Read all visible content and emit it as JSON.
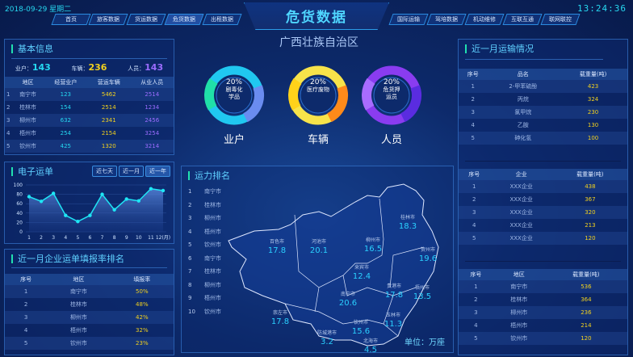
{
  "header": {
    "date": "2018-09-29  星期二",
    "time": "13:24:36",
    "title": "危货数据",
    "subtitle": "广西壮族自治区",
    "nav_left": [
      "首页",
      "旅客数据",
      "货运数据",
      "危货数据",
      "出租数据"
    ],
    "nav_right": [
      "国际运输",
      "驾培数据",
      "机动维修",
      "互联互通",
      "联网联控"
    ],
    "active": "危货数据"
  },
  "basic": {
    "title": "基本信息",
    "stats": [
      {
        "label": "业户：",
        "value": "143"
      },
      {
        "label": "车辆：",
        "value": "236"
      },
      {
        "label": "人员：",
        "value": "143"
      }
    ],
    "columns": [
      "",
      "地区",
      "经营业户",
      "营运车辆",
      "从业人员"
    ],
    "rows": [
      [
        "1",
        "南宁市",
        "123",
        "5462",
        "2514"
      ],
      [
        "2",
        "桂林市",
        "154",
        "2514",
        "1234"
      ],
      [
        "3",
        "柳州市",
        "632",
        "2341",
        "2456"
      ],
      [
        "4",
        "梧州市",
        "254",
        "2154",
        "3254"
      ],
      [
        "5",
        "钦州市",
        "425",
        "1320",
        "3214"
      ]
    ]
  },
  "donuts": [
    {
      "pct": "20%",
      "desc1": "剧毒化",
      "desc2": "学品",
      "label": "业户",
      "colors": [
        "#20c8f0",
        "#6a8cf0",
        "#20e0a8"
      ]
    },
    {
      "pct": "20%",
      "desc1": "医疗废物",
      "desc2": "",
      "label": "车辆",
      "colors": [
        "#f7e34a",
        "#ff8a1a",
        "#ffd21a"
      ]
    },
    {
      "pct": "20%",
      "desc1": "危货押",
      "desc2": "运员",
      "label": "人员",
      "colors": [
        "#8a3cf0",
        "#5a2ce0",
        "#a86cff"
      ]
    }
  ],
  "waybill": {
    "title": "电子运单",
    "buttons": [
      "近七天",
      "近一月",
      "近一年"
    ],
    "active": "近一年"
  },
  "chart_data": {
    "type": "area",
    "x": [
      "1",
      "2",
      "3",
      "4",
      "5",
      "6",
      "7",
      "8",
      "9",
      "10",
      "11",
      "12(月)"
    ],
    "values": [
      75,
      65,
      82,
      35,
      22,
      35,
      80,
      47,
      70,
      66,
      92,
      88
    ],
    "ylim": [
      0,
      100
    ],
    "yticks": [
      0,
      20,
      40,
      60,
      80,
      100
    ],
    "grid": true,
    "color": "#1ee6f5"
  },
  "fill_rank": {
    "title": "近一月企业运单填报率排名",
    "columns": [
      "序号",
      "地区",
      "填报率"
    ],
    "rows": [
      [
        "1",
        "南宁市",
        "50%"
      ],
      [
        "2",
        "桂林市",
        "48%"
      ],
      [
        "3",
        "柳州市",
        "42%"
      ],
      [
        "4",
        "梧州市",
        "32%"
      ],
      [
        "5",
        "钦州市",
        "23%"
      ]
    ]
  },
  "capacity": {
    "title": "运力排名",
    "items": [
      "南宁市",
      "桂林市",
      "柳州市",
      "梧州市",
      "钦州市",
      "南宁市",
      "桂林市",
      "柳州市",
      "梧州市",
      "钦州市"
    ],
    "unit": "单位：万座",
    "regions": [
      {
        "name": "百色市",
        "value": "17.8"
      },
      {
        "name": "河池市",
        "value": "20.1"
      },
      {
        "name": "柳州市",
        "value": "16.5"
      },
      {
        "name": "桂林市",
        "value": "18.3"
      },
      {
        "name": "贺州市",
        "value": "19.6"
      },
      {
        "name": "来宾市",
        "value": "12.4"
      },
      {
        "name": "贵港市",
        "value": "17.8"
      },
      {
        "name": "梧州市",
        "value": "13.5"
      },
      {
        "name": "南宁市",
        "value": "20.6"
      },
      {
        "name": "崇左市",
        "value": "17.8"
      },
      {
        "name": "防城港市",
        "value": "3.2"
      },
      {
        "name": "钦州市",
        "value": "15.6"
      },
      {
        "name": "玉林市",
        "value": "11.3"
      },
      {
        "name": "北海市",
        "value": "4.5"
      }
    ]
  },
  "transport": {
    "title": "近一月运输情况",
    "t1": {
      "columns": [
        "序号",
        "品名",
        "载重量(吨)"
      ],
      "rows": [
        [
          "1",
          "2-甲苯硫酚",
          "423"
        ],
        [
          "2",
          "丙烷",
          "324"
        ],
        [
          "3",
          "氯甲烷",
          "230"
        ],
        [
          "4",
          "乙胺",
          "130"
        ],
        [
          "5",
          "砷化氢",
          "100"
        ]
      ]
    },
    "t2": {
      "columns": [
        "序号",
        "企业",
        "载重量(吨)"
      ],
      "rows": [
        [
          "1",
          "XXX企业",
          "438"
        ],
        [
          "2",
          "XXX企业",
          "367"
        ],
        [
          "3",
          "XXX企业",
          "320"
        ],
        [
          "4",
          "XXX企业",
          "213"
        ],
        [
          "5",
          "XXX企业",
          "120"
        ]
      ]
    },
    "t3": {
      "columns": [
        "序号",
        "地区",
        "载重量(吨)"
      ],
      "rows": [
        [
          "1",
          "南宁市",
          "536"
        ],
        [
          "2",
          "桂林市",
          "364"
        ],
        [
          "3",
          "柳州市",
          "236"
        ],
        [
          "4",
          "梧州市",
          "214"
        ],
        [
          "5",
          "钦州市",
          "120"
        ]
      ]
    }
  }
}
